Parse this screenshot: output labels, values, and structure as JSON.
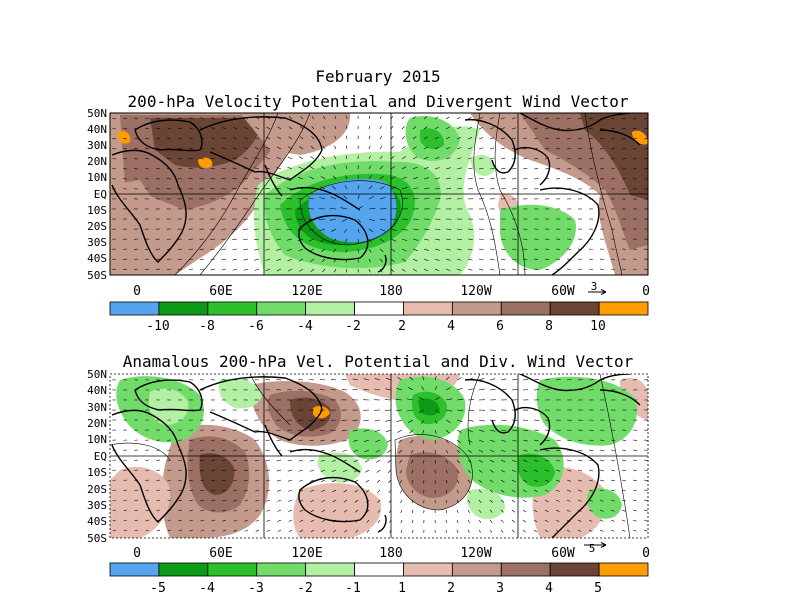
{
  "colors": {
    "legend1": [
      "#55a5ee",
      "#0c9b16",
      "#2cc02c",
      "#72dc6a",
      "#b4f0a4",
      "#ffffff",
      "#e6bcb0",
      "#c49a8c",
      "#9c7064",
      "#6a4434",
      "#ff9c00"
    ],
    "legend2": [
      "#55a5ee",
      "#0c9b16",
      "#2cc02c",
      "#72dc6a",
      "#b4f0a4",
      "#ffffff",
      "#e6bcb0",
      "#c49a8c",
      "#9c7064",
      "#6a4434",
      "#ff9c00"
    ]
  },
  "panel1": {
    "title_line1": "February 2015",
    "title_line2": "200-hPa Velocity Potential and Divergent Wind Vector",
    "lat_labels": [
      "50N",
      "40N",
      "30N",
      "20N",
      "10N",
      "EQ",
      "10S",
      "20S",
      "30S",
      "40S",
      "50S"
    ],
    "lon_labels": [
      "0",
      "60E",
      "120E",
      "180",
      "120W",
      "60W",
      "0"
    ],
    "vector_ref": "3",
    "colorbar_labels": [
      "-10",
      "-8",
      "-6",
      "-4",
      "-2",
      "2",
      "4",
      "6",
      "8",
      "10"
    ]
  },
  "panel2": {
    "title": "Anamalous 200-hPa Vel. Potential and Div. Wind Vector",
    "lat_labels": [
      "50N",
      "40N",
      "30N",
      "20N",
      "10N",
      "EQ",
      "10S",
      "20S",
      "30S",
      "40S",
      "50S"
    ],
    "lon_labels": [
      "0",
      "60E",
      "120E",
      "180",
      "120W",
      "60W",
      "0"
    ],
    "vector_ref": "5",
    "colorbar_labels": [
      "-5",
      "-4",
      "-3",
      "-2",
      "-1",
      "1",
      "2",
      "3",
      "4",
      "5"
    ]
  }
}
